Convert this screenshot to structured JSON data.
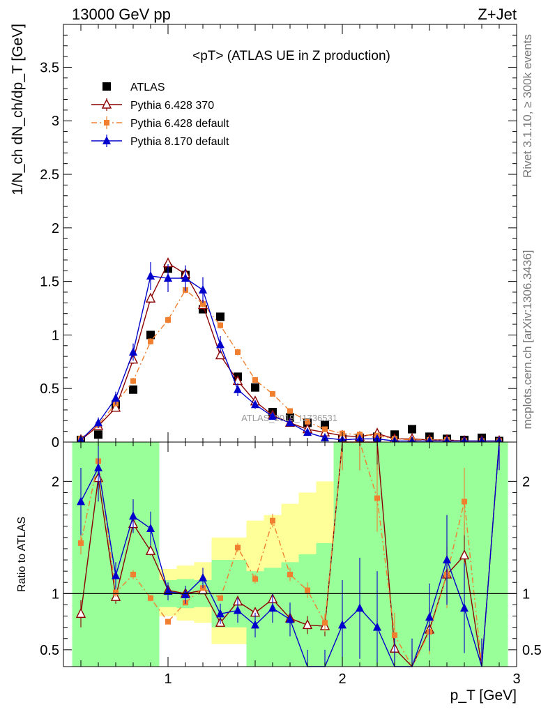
{
  "header": {
    "energy_label": "13000 GeV pp",
    "process_label": "Z+Jet",
    "side_top": "Rivet 3.1.10, ≥ 300k events",
    "side_bottom": "mcplots.cern.ch [arXiv:1306.3436]",
    "watermark": "ATLAS_2019_I1736531"
  },
  "colors": {
    "data": "#000000",
    "p6_370": "#8b0000",
    "p6_default": "#f08030",
    "p8_default": "#0000cc",
    "band_inner": "#99ff99",
    "band_outer": "#ffff99"
  },
  "chart_data": [
    {
      "type": "scatter",
      "title": "<pT> (ATLAS UE in Z production)",
      "xlabel": "p_T [GeV]",
      "ylabel": "1/N_ch dN_ch/dp_T [GeV]",
      "xlim": [
        0.4,
        3.0
      ],
      "ylim": [
        0,
        3.9
      ],
      "yticks": [
        "0",
        "0.5",
        "1",
        "1.5",
        "2",
        "2.5",
        "3",
        "3.5"
      ],
      "legend_position": "top-left",
      "x": [
        0.5,
        0.6,
        0.7,
        0.8,
        0.9,
        1.0,
        1.1,
        1.2,
        1.3,
        1.4,
        1.5,
        1.6,
        1.7,
        1.8,
        1.9,
        2.0,
        2.1,
        2.2,
        2.3,
        2.4,
        2.5,
        2.6,
        2.7,
        2.8,
        2.9
      ],
      "series": [
        {
          "name": "ATLAS",
          "values": [
            0.02,
            0.07,
            0.35,
            0.49,
            1.0,
            1.62,
            1.56,
            1.24,
            1.17,
            0.61,
            0.51,
            0.28,
            0.23,
            0.18,
            0.16,
            0.03,
            0.04,
            0.05,
            0.07,
            0.12,
            0.05,
            0.03,
            0.02,
            0.04,
            0.01
          ],
          "errors": [
            0,
            0,
            0,
            0,
            0,
            0,
            0,
            0,
            0,
            0,
            0,
            0,
            0,
            0,
            0,
            0,
            0,
            0,
            0,
            0,
            0,
            0,
            0,
            0,
            0
          ]
        },
        {
          "name": "Pythia 6.428 370",
          "values": [
            0.02,
            0.15,
            0.32,
            0.77,
            1.34,
            1.67,
            1.57,
            1.28,
            0.81,
            0.57,
            0.38,
            0.25,
            0.18,
            0.12,
            0.09,
            0.06,
            0.05,
            0.08,
            0.03,
            0.03,
            0.02,
            0.02,
            0.01,
            0.01,
            0.01
          ],
          "errors": [
            0.01,
            0.03,
            0.03,
            0.04,
            0.04,
            0.04,
            0.04,
            0.04,
            0.03,
            0.03,
            0.02,
            0.02,
            0.02,
            0.02,
            0.01,
            0.01,
            0.01,
            0.01,
            0.01,
            0.01,
            0.01,
            0.01,
            0.01,
            0.01,
            0.01
          ]
        },
        {
          "name": "Pythia 6.428 default",
          "values": [
            0.03,
            0.16,
            0.36,
            0.57,
            0.94,
            1.14,
            1.42,
            1.29,
            1.09,
            0.84,
            0.58,
            0.45,
            0.29,
            0.19,
            0.12,
            0.08,
            0.07,
            0.06,
            0.03,
            0.02,
            0.02,
            0.02,
            0.01,
            0.01,
            0.01
          ],
          "errors": [
            0.01,
            0.02,
            0.02,
            0.03,
            0.03,
            0.03,
            0.03,
            0.03,
            0.03,
            0.03,
            0.02,
            0.02,
            0.02,
            0.02,
            0.01,
            0.01,
            0.01,
            0.01,
            0.01,
            0.01,
            0.01,
            0.01,
            0.01,
            0.01,
            0.01
          ]
        },
        {
          "name": "Pythia 8.170 default",
          "values": [
            0.02,
            0.18,
            0.41,
            0.84,
            1.55,
            1.53,
            1.53,
            1.42,
            0.91,
            0.49,
            0.35,
            0.24,
            0.18,
            0.09,
            0.04,
            0.02,
            0.03,
            0.03,
            0.01,
            0.01,
            0.01,
            0.01,
            0.01,
            0.01,
            0.01
          ],
          "errors": [
            0.01,
            0.05,
            0.06,
            0.08,
            0.13,
            0.13,
            0.12,
            0.12,
            0.08,
            0.06,
            0.04,
            0.03,
            0.03,
            0.02,
            0.01,
            0.01,
            0.01,
            0.01,
            0.01,
            0.01,
            0.01,
            0.01,
            0.01,
            0.01,
            0.01
          ]
        }
      ]
    },
    {
      "type": "line",
      "xlabel": "p_T [GeV]",
      "ylabel": "Ratio to ATLAS",
      "xlim": [
        0.4,
        3.0
      ],
      "ylim": [
        0.35,
        2.35
      ],
      "yticks": [
        "0.5",
        "1",
        "2"
      ],
      "xticks": [
        "1",
        "2",
        "3"
      ],
      "reference_line": 1,
      "x": [
        0.5,
        0.6,
        0.7,
        0.8,
        0.9,
        1.0,
        1.1,
        1.2,
        1.3,
        1.4,
        1.5,
        1.6,
        1.7,
        1.8,
        1.9,
        2.0,
        2.1,
        2.2,
        2.3,
        2.4,
        2.5,
        2.6,
        2.7,
        2.8,
        2.9
      ],
      "bands": {
        "inner_low": [
          0.3,
          0.3,
          0.3,
          0.3,
          0.3,
          0.88,
          0.87,
          0.88,
          0.7,
          0.7,
          0.3,
          0.3,
          0.3,
          0.3,
          0.3,
          0.3,
          0.3,
          0.3,
          0.3,
          0.3,
          0.3,
          0.3,
          0.3,
          0.3,
          0.3
        ],
        "inner_high": [
          2.4,
          2.4,
          2.4,
          2.4,
          2.4,
          1.12,
          1.13,
          1.12,
          1.3,
          1.3,
          1.2,
          1.23,
          1.28,
          1.35,
          1.45,
          2.4,
          2.4,
          2.4,
          2.4,
          2.4,
          2.4,
          2.4,
          2.4,
          2.4,
          2.4
        ],
        "outer_low": [
          0.3,
          0.3,
          0.3,
          0.3,
          0.3,
          0.8,
          0.76,
          0.74,
          0.55,
          0.55,
          0.3,
          0.3,
          0.3,
          0.3,
          0.3,
          0.3,
          0.3,
          0.3,
          0.3,
          0.3,
          0.3,
          0.3,
          0.3,
          0.3,
          0.3
        ],
        "outer_high": [
          2.4,
          2.4,
          2.4,
          2.4,
          2.4,
          1.22,
          1.25,
          1.28,
          1.5,
          1.5,
          1.65,
          1.7,
          1.8,
          1.9,
          2.0,
          2.4,
          2.4,
          2.4,
          2.4,
          2.4,
          2.4,
          2.4,
          2.4,
          2.4,
          2.4
        ]
      },
      "series": [
        {
          "name": "Pythia 6.428 370",
          "values": [
            0.82,
            2.03,
            0.97,
            1.62,
            1.38,
            1.03,
            1.0,
            1.03,
            0.74,
            0.93,
            0.83,
            0.95,
            0.78,
            0.72,
            0.71,
            2.4,
            2.4,
            2.4,
            0.51,
            0.3,
            0.68,
            1.17,
            1.34,
            0.3,
            2.4
          ],
          "errors": [
            0.12,
            0.15,
            0.06,
            0.05,
            0.04,
            0.03,
            0.03,
            0.03,
            0.03,
            0.04,
            0.04,
            0.05,
            0.07,
            0.08,
            0.09,
            0.3,
            0.3,
            0.3,
            0.15,
            0.2,
            0.2,
            0.25,
            0.3,
            0.3,
            0.3
          ]
        },
        {
          "name": "Pythia 6.428 default",
          "values": [
            1.45,
            2.18,
            1.01,
            1.17,
            0.96,
            0.75,
            0.92,
            1.05,
            0.96,
            1.41,
            1.13,
            1.65,
            1.17,
            1.03,
            0.74,
            2.4,
            2.4,
            1.85,
            0.63,
            0.3,
            0.66,
            1.17,
            1.82,
            0.3,
            2.4
          ],
          "errors": [
            0.1,
            0.1,
            0.04,
            0.04,
            0.03,
            0.02,
            0.02,
            0.02,
            0.02,
            0.04,
            0.04,
            0.06,
            0.06,
            0.07,
            0.08,
            0.3,
            0.3,
            0.3,
            0.2,
            0.2,
            0.2,
            0.3,
            0.3,
            0.3,
            0.3
          ]
        },
        {
          "name": "Pythia 8.170 default",
          "values": [
            1.82,
            2.12,
            1.16,
            1.69,
            1.58,
            1.02,
            0.99,
            1.14,
            0.82,
            0.85,
            0.72,
            0.87,
            0.77,
            0.3,
            0.3,
            0.72,
            0.87,
            0.7,
            0.3,
            0.3,
            0.79,
            1.3,
            0.87,
            0.3,
            2.4
          ],
          "errors": [
            0.3,
            0.3,
            0.12,
            0.15,
            0.15,
            0.08,
            0.08,
            0.09,
            0.09,
            0.11,
            0.11,
            0.13,
            0.15,
            0.2,
            0.2,
            0.4,
            0.45,
            0.5,
            0.3,
            0.3,
            0.3,
            0.4,
            0.4,
            0.3,
            0.3
          ]
        }
      ]
    }
  ]
}
